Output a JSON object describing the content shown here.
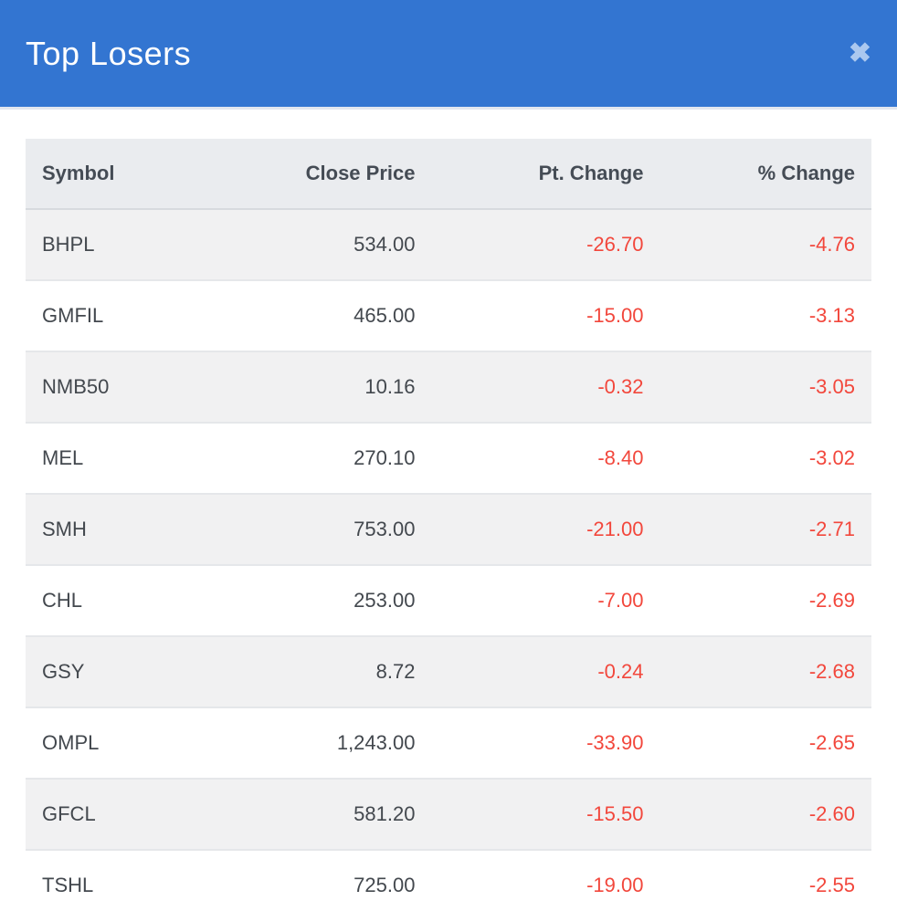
{
  "modal": {
    "title": "Top Losers",
    "close_icon": "✖"
  },
  "colors": {
    "header_bg": "#3375d1",
    "header_text": "#ffffff",
    "close_icon": "#abc8ef",
    "table_header_bg": "#eaecef",
    "table_header_text": "#454c55",
    "row_stripe_bg": "#f1f1f2",
    "row_plain_bg": "#ffffff",
    "cell_text": "#43484e",
    "negative_value": "#f2473c"
  },
  "table": {
    "columns": [
      {
        "label": "Symbol",
        "align": "left"
      },
      {
        "label": "Close Price",
        "align": "right"
      },
      {
        "label": "Pt. Change",
        "align": "right"
      },
      {
        "label": "% Change",
        "align": "right"
      }
    ],
    "rows": [
      {
        "symbol": "BHPL",
        "close_price": "534.00",
        "pt_change": "-26.70",
        "pct_change": "-4.76"
      },
      {
        "symbol": "GMFIL",
        "close_price": "465.00",
        "pt_change": "-15.00",
        "pct_change": "-3.13"
      },
      {
        "symbol": "NMB50",
        "close_price": "10.16",
        "pt_change": "-0.32",
        "pct_change": "-3.05"
      },
      {
        "symbol": "MEL",
        "close_price": "270.10",
        "pt_change": "-8.40",
        "pct_change": "-3.02"
      },
      {
        "symbol": "SMH",
        "close_price": "753.00",
        "pt_change": "-21.00",
        "pct_change": "-2.71"
      },
      {
        "symbol": "CHL",
        "close_price": "253.00",
        "pt_change": "-7.00",
        "pct_change": "-2.69"
      },
      {
        "symbol": "GSY",
        "close_price": "8.72",
        "pt_change": "-0.24",
        "pct_change": "-2.68"
      },
      {
        "symbol": "OMPL",
        "close_price": "1,243.00",
        "pt_change": "-33.90",
        "pct_change": "-2.65"
      },
      {
        "symbol": "GFCL",
        "close_price": "581.20",
        "pt_change": "-15.50",
        "pct_change": "-2.60"
      },
      {
        "symbol": "TSHL",
        "close_price": "725.00",
        "pt_change": "-19.00",
        "pct_change": "-2.55"
      }
    ]
  }
}
